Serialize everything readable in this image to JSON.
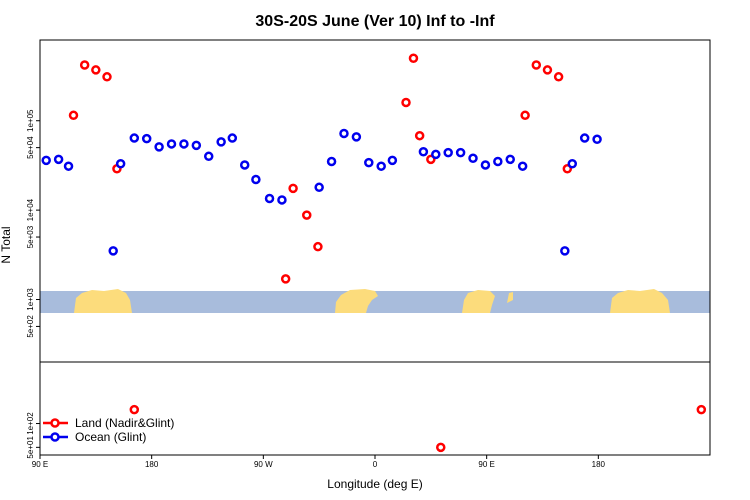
{
  "chart_data": {
    "type": "scatter",
    "title": "30S-20S June (Ver 10)   Inf to -Inf",
    "xlabel": "Longitude (deg E)",
    "ylabel": "N Total",
    "x_unit_note": "continuous longitude from 90E eastward, 0-540",
    "xlim": [
      0,
      540
    ],
    "x_tick_labels": [
      "90 E",
      "180",
      "90 W",
      "0",
      "90 E",
      "180"
    ],
    "x_tick_values": [
      0,
      90,
      180,
      270,
      360,
      450
    ],
    "upper_panel": {
      "scale": "log",
      "ylim": [
        200,
        800000
      ],
      "y_tick_labels": [
        "5e+02",
        "1e+03",
        "5e+03",
        "1e+04",
        "5e+04",
        "1e+05"
      ],
      "y_tick_values": [
        500,
        1000,
        5000,
        10000,
        50000,
        100000
      ]
    },
    "lower_panel": {
      "scale": "log",
      "ylim": [
        40,
        600
      ],
      "y_tick_labels": [
        "5e+01",
        "1e+02"
      ],
      "y_tick_values": [
        50,
        100
      ]
    },
    "land_mask_band": {
      "colors": {
        "ocean": "#a8bcdc",
        "land": "#fcdc7c"
      }
    },
    "series": [
      {
        "name": "Land (Nadir&Glint)",
        "color": "#ff0000",
        "points_upper": [
          {
            "x": 27,
            "y": 115000
          },
          {
            "x": 36,
            "y": 420000
          },
          {
            "x": 45,
            "y": 370000
          },
          {
            "x": 54,
            "y": 310000
          },
          {
            "x": 62,
            "y": 29000
          },
          {
            "x": 198,
            "y": 1700
          },
          {
            "x": 204,
            "y": 17500
          },
          {
            "x": 215,
            "y": 8800
          },
          {
            "x": 224,
            "y": 3900
          },
          {
            "x": 295,
            "y": 160000
          },
          {
            "x": 301,
            "y": 500000
          },
          {
            "x": 306,
            "y": 68000
          },
          {
            "x": 315,
            "y": 37000
          },
          {
            "x": 391,
            "y": 115000
          },
          {
            "x": 400,
            "y": 420000
          },
          {
            "x": 409,
            "y": 370000
          },
          {
            "x": 418,
            "y": 310000
          },
          {
            "x": 425,
            "y": 29000
          }
        ],
        "points_lower": [
          {
            "x": 76,
            "y": 150
          },
          {
            "x": 323,
            "y": 50
          },
          {
            "x": 533,
            "y": 150
          }
        ]
      },
      {
        "name": "Ocean (Glint)",
        "color": "#0000ee",
        "points_upper": [
          {
            "x": 5,
            "y": 36000
          },
          {
            "x": 15,
            "y": 37000
          },
          {
            "x": 23,
            "y": 31000
          },
          {
            "x": 59,
            "y": 3500
          },
          {
            "x": 65,
            "y": 33000
          },
          {
            "x": 76,
            "y": 64000
          },
          {
            "x": 86,
            "y": 63000
          },
          {
            "x": 96,
            "y": 51000
          },
          {
            "x": 106,
            "y": 55000
          },
          {
            "x": 116,
            "y": 55000
          },
          {
            "x": 126,
            "y": 53000
          },
          {
            "x": 136,
            "y": 40000
          },
          {
            "x": 146,
            "y": 58000
          },
          {
            "x": 155,
            "y": 64000
          },
          {
            "x": 165,
            "y": 32000
          },
          {
            "x": 174,
            "y": 22000
          },
          {
            "x": 185,
            "y": 13500
          },
          {
            "x": 195,
            "y": 13000
          },
          {
            "x": 225,
            "y": 18000
          },
          {
            "x": 235,
            "y": 35000
          },
          {
            "x": 245,
            "y": 72000
          },
          {
            "x": 255,
            "y": 66000
          },
          {
            "x": 265,
            "y": 34000
          },
          {
            "x": 275,
            "y": 31000
          },
          {
            "x": 284,
            "y": 36000
          },
          {
            "x": 309,
            "y": 45000
          },
          {
            "x": 319,
            "y": 42000
          },
          {
            "x": 329,
            "y": 44000
          },
          {
            "x": 339,
            "y": 44000
          },
          {
            "x": 349,
            "y": 38000
          },
          {
            "x": 359,
            "y": 32000
          },
          {
            "x": 369,
            "y": 35000
          },
          {
            "x": 379,
            "y": 37000
          },
          {
            "x": 389,
            "y": 31000
          },
          {
            "x": 423,
            "y": 3500
          },
          {
            "x": 429,
            "y": 33000
          },
          {
            "x": 439,
            "y": 64000
          },
          {
            "x": 449,
            "y": 62000
          }
        ]
      }
    ]
  }
}
